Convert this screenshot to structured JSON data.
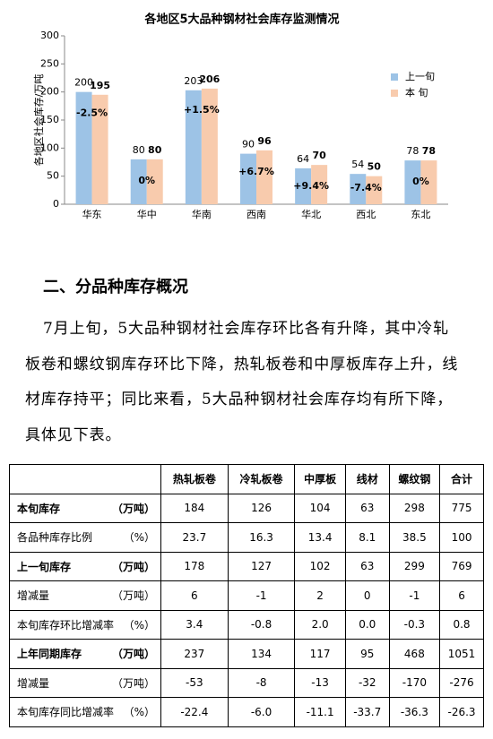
{
  "chart_data": {
    "type": "bar",
    "title": "各地区5大品种钢材社会库存监测情况",
    "y_label": "各地区社会库存/万吨",
    "categories": [
      "华东",
      "华中",
      "华南",
      "西南",
      "华北",
      "西北",
      "东北"
    ],
    "series": [
      {
        "name": "上一旬",
        "color": "#9dc3e6",
        "values": [
          200,
          80,
          203,
          90,
          64,
          54,
          78
        ]
      },
      {
        "name": "本 旬",
        "color": "#f8cbad",
        "values": [
          195,
          80,
          206,
          96,
          70,
          50,
          78
        ]
      }
    ],
    "annotations": [
      "-2.5%",
      "0%",
      "+1.5%",
      "+6.7%",
      "+9.4%",
      "-7.4%",
      "0%"
    ],
    "ylim": [
      0,
      300
    ],
    "yticks": [
      0,
      50,
      100,
      150,
      200,
      250,
      300
    ],
    "grid": false,
    "legend": "right"
  },
  "section": {
    "heading": "二、分品种库存概况",
    "paragraph": "7月上旬，5大品种钢材社会库存环比各有升降，其中冷轧板卷和螺纹钢库存环比下降，热轧板卷和中厚板库存上升，线材库存持平；同比来看，5大品种钢材社会库存均有所下降，具体见下表。"
  },
  "table": {
    "header": [
      "热轧板卷",
      "冷轧板卷",
      "中厚板",
      "线材",
      "螺纹钢",
      "合计"
    ],
    "rows": [
      {
        "label": "本旬库存",
        "unit": "（万吨）",
        "cells": [
          "184",
          "126",
          "104",
          "63",
          "298",
          "775"
        ]
      },
      {
        "label": "各品种库存比例",
        "unit": "（%）",
        "cells": [
          "23.7",
          "16.3",
          "13.4",
          "8.1",
          "38.5",
          "100"
        ]
      },
      {
        "label": "上一旬库存",
        "unit": "（万吨）",
        "cells": [
          "178",
          "127",
          "102",
          "63",
          "299",
          "769"
        ]
      },
      {
        "label": "增减量",
        "unit": "（万吨）",
        "cells": [
          "6",
          "-1",
          "2",
          "0",
          "-1",
          "6"
        ]
      },
      {
        "label": "本旬库存环比增减率",
        "unit": "（%）",
        "cells": [
          "3.4",
          "-0.8",
          "2.0",
          "0.0",
          "-0.3",
          "0.8"
        ]
      },
      {
        "label": "上年同期库存",
        "unit": "（万吨）",
        "cells": [
          "237",
          "134",
          "117",
          "95",
          "468",
          "1051"
        ]
      },
      {
        "label": "增减量",
        "unit": "（万吨）",
        "cells": [
          "-53",
          "-8",
          "-13",
          "-32",
          "-170",
          "-276"
        ]
      },
      {
        "label": "本旬库存同比增减率",
        "unit": "（%）",
        "cells": [
          "-22.4",
          "-6.0",
          "-11.1",
          "-33.7",
          "-36.3",
          "-26.3"
        ]
      }
    ]
  }
}
